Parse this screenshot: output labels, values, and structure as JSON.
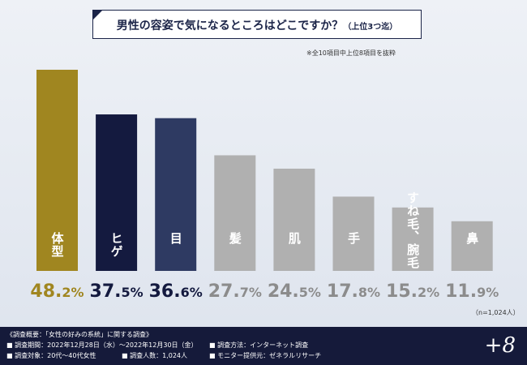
{
  "title": {
    "main": "男性の容姿で気になるところはどこですか？",
    "sub": "（上位3つ迄）"
  },
  "note": "※全10項目中上位8項目を抜粋",
  "sample_note": "（n=1,024人）",
  "colors": {
    "gold": "#a08620",
    "navy_dark": "#141a3f",
    "navy": "#2e3a62",
    "gray": "#b0b0b0",
    "pct_gold": "#a08620",
    "pct_navy": "#141a3f",
    "pct_gray": "#8c8c8c"
  },
  "chart_data": {
    "type": "bar",
    "categories": [
      "体型",
      "ヒゲ",
      "目",
      "髪",
      "肌",
      "手",
      "すね毛、腕毛",
      "鼻"
    ],
    "values": [
      48.2,
      37.5,
      36.6,
      27.7,
      24.5,
      17.8,
      15.2,
      11.9
    ],
    "value_labels": [
      "48.2%",
      "37.5%",
      "36.6%",
      "27.7%",
      "24.5%",
      "17.8%",
      "15.2%",
      "11.9%"
    ],
    "bar_colors": [
      "gold",
      "navy_dark",
      "navy",
      "gray",
      "gray",
      "gray",
      "gray",
      "gray"
    ],
    "ylim": [
      0,
      50
    ],
    "grid": false
  },
  "footer": {
    "heading": "《調査概要：「女性の好みの系統」に関する調査》",
    "period": "■ 調査期間：2022年12月28日（水）～2022年12月30日（金）",
    "method": "■ 調査方法：インターネット調査",
    "target": "■ 調査対象：20代～40代女性",
    "count": "■ 調査人数：1,024人",
    "provider": "■ モニター提供元：ゼネラルリサーチ",
    "logo": "+8"
  }
}
